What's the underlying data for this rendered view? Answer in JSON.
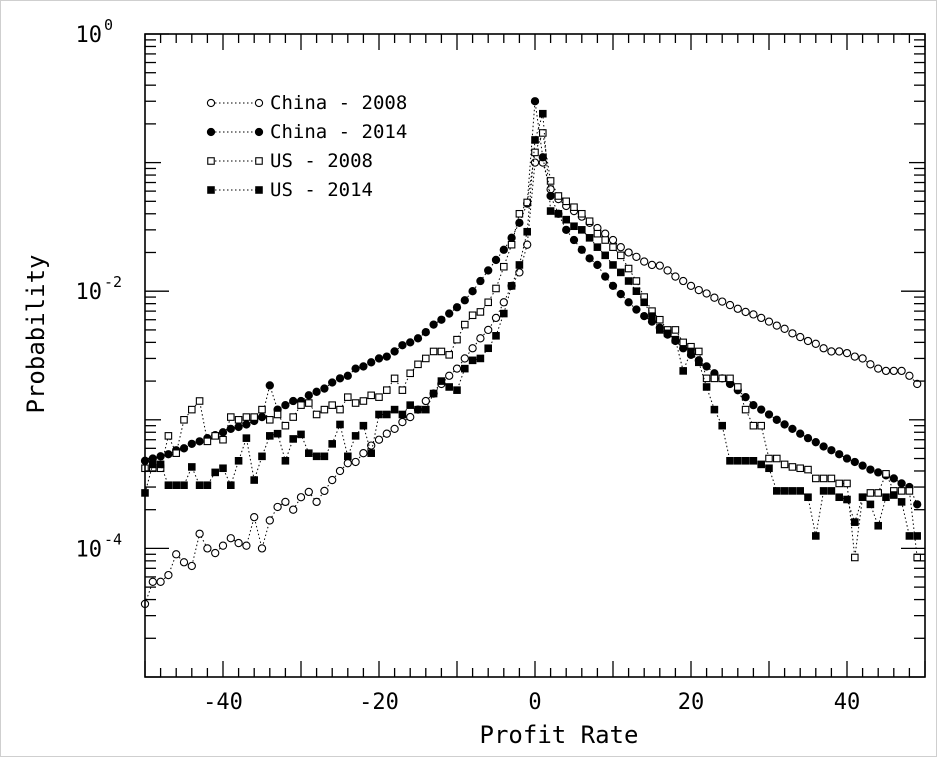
{
  "chart_data": {
    "type": "scatter",
    "xlabel": "Profit Rate",
    "ylabel": "Probability",
    "xlim": [
      -50,
      50
    ],
    "ylim": [
      1e-05,
      1
    ],
    "yscale": "log",
    "grid": false,
    "legend_position": "top-left",
    "x_ticks": [
      {
        "value": -40,
        "label": "-40"
      },
      {
        "value": -20,
        "label": "-20"
      },
      {
        "value": 0,
        "label": "0"
      },
      {
        "value": 20,
        "label": "20"
      },
      {
        "value": 40,
        "label": "40"
      }
    ],
    "y_ticks": [
      {
        "value": 1,
        "base": "10",
        "exp": "0"
      },
      {
        "value": 0.01,
        "base": "10",
        "exp": "-2"
      },
      {
        "value": 0.0001,
        "base": "10",
        "exp": "-4"
      }
    ],
    "series": [
      {
        "name": "China - 2008",
        "marker": "circle-open",
        "x": [
          -50,
          -49,
          -48,
          -47,
          -46,
          -45,
          -44,
          -43,
          -42,
          -41,
          -40,
          -39,
          -38,
          -37,
          -36,
          -35,
          -34,
          -33,
          -32,
          -31,
          -30,
          -29,
          -28,
          -27,
          -26,
          -25,
          -24,
          -23,
          -22,
          -21,
          -20,
          -19,
          -18,
          -17,
          -16,
          -15,
          -14,
          -13,
          -12,
          -11,
          -10,
          -9,
          -8,
          -7,
          -6,
          -5,
          -4,
          -3,
          -2,
          -1,
          0,
          1,
          2,
          3,
          4,
          5,
          6,
          7,
          8,
          9,
          10,
          11,
          12,
          13,
          14,
          15,
          16,
          17,
          18,
          19,
          20,
          21,
          22,
          23,
          24,
          25,
          26,
          27,
          28,
          29,
          30,
          31,
          32,
          33,
          34,
          35,
          36,
          37,
          38,
          39,
          40,
          41,
          42,
          43,
          44,
          45,
          46,
          47,
          48,
          49
        ],
        "y": [
          3.7e-05,
          5.5e-05,
          5.5e-05,
          6.2e-05,
          9e-05,
          7.8e-05,
          7.3e-05,
          0.00013,
          0.0001,
          9.2e-05,
          0.000105,
          0.00012,
          0.00011,
          0.000105,
          0.000175,
          0.0001,
          0.000165,
          0.00021,
          0.00023,
          0.0002,
          0.00025,
          0.000275,
          0.00023,
          0.00028,
          0.00034,
          0.0004,
          0.00046,
          0.00047,
          0.00055,
          0.00063,
          0.0007,
          0.00078,
          0.00085,
          0.00096,
          0.00105,
          0.0012,
          0.0014,
          0.0016,
          0.0019,
          0.0022,
          0.0025,
          0.003,
          0.0036,
          0.0043,
          0.005,
          0.0062,
          0.0082,
          0.011,
          0.014,
          0.023,
          0.1,
          0.1,
          0.062,
          0.052,
          0.046,
          0.042,
          0.038,
          0.034,
          0.031,
          0.028,
          0.025,
          0.022,
          0.02,
          0.0185,
          0.017,
          0.016,
          0.0158,
          0.0145,
          0.013,
          0.012,
          0.011,
          0.0102,
          0.0096,
          0.0089,
          0.0083,
          0.0078,
          0.0073,
          0.0069,
          0.0066,
          0.0062,
          0.0058,
          0.0054,
          0.0051,
          0.0047,
          0.0044,
          0.0041,
          0.0039,
          0.0036,
          0.0034,
          0.0034,
          0.0033,
          0.0031,
          0.003,
          0.0027,
          0.0025,
          0.0024,
          0.0024,
          0.0024,
          0.0022,
          0.0019
        ]
      },
      {
        "name": "China - 2014",
        "marker": "circle-filled",
        "x": [
          -50,
          -49,
          -48,
          -47,
          -46,
          -45,
          -44,
          -43,
          -42,
          -41,
          -40,
          -39,
          -38,
          -37,
          -36,
          -35,
          -34,
          -33,
          -32,
          -31,
          -30,
          -29,
          -28,
          -27,
          -26,
          -25,
          -24,
          -23,
          -22,
          -21,
          -20,
          -19,
          -18,
          -17,
          -16,
          -15,
          -14,
          -13,
          -12,
          -11,
          -10,
          -9,
          -8,
          -7,
          -6,
          -5,
          -4,
          -3,
          -2,
          -1,
          0,
          1,
          2,
          3,
          4,
          5,
          6,
          7,
          8,
          9,
          10,
          11,
          12,
          13,
          14,
          15,
          16,
          17,
          18,
          19,
          20,
          21,
          22,
          23,
          24,
          25,
          26,
          27,
          28,
          29,
          30,
          31,
          32,
          33,
          34,
          35,
          36,
          37,
          38,
          39,
          40,
          41,
          42,
          43,
          44,
          45,
          46,
          47,
          48,
          49
        ],
        "y": [
          0.00048,
          0.0005,
          0.00052,
          0.00054,
          0.00058,
          0.0006,
          0.00065,
          0.00068,
          0.00072,
          0.00076,
          0.0008,
          0.00085,
          0.00088,
          0.00092,
          0.00098,
          0.00105,
          0.00185,
          0.0012,
          0.0013,
          0.0014,
          0.0014,
          0.00155,
          0.00165,
          0.00175,
          0.00195,
          0.0021,
          0.0022,
          0.0025,
          0.0026,
          0.0028,
          0.003,
          0.0031,
          0.0034,
          0.0038,
          0.004,
          0.0043,
          0.0048,
          0.0055,
          0.006,
          0.0067,
          0.0075,
          0.0085,
          0.01,
          0.012,
          0.0145,
          0.0175,
          0.021,
          0.026,
          0.034,
          0.048,
          0.3,
          0.11,
          0.055,
          0.04,
          0.03,
          0.025,
          0.021,
          0.018,
          0.016,
          0.013,
          0.011,
          0.0095,
          0.0082,
          0.0072,
          0.0064,
          0.0058,
          0.0052,
          0.0046,
          0.0041,
          0.0036,
          0.0032,
          0.0029,
          0.0026,
          0.0023,
          0.0021,
          0.0019,
          0.0017,
          0.0015,
          0.0013,
          0.0012,
          0.0011,
          0.001,
          0.00092,
          0.00085,
          0.00078,
          0.00072,
          0.00067,
          0.00062,
          0.00058,
          0.00054,
          0.0005,
          0.00047,
          0.00044,
          0.00041,
          0.00039,
          0.00037,
          0.00035,
          0.00032,
          0.0003,
          0.00022
        ]
      },
      {
        "name": "US - 2008",
        "marker": "square-open",
        "x": [
          -50,
          -49,
          -48,
          -47,
          -46,
          -45,
          -44,
          -43,
          -42,
          -41,
          -40,
          -39,
          -38,
          -37,
          -36,
          -35,
          -34,
          -33,
          -32,
          -31,
          -30,
          -29,
          -28,
          -27,
          -26,
          -25,
          -24,
          -23,
          -22,
          -21,
          -20,
          -19,
          -18,
          -17,
          -16,
          -15,
          -14,
          -13,
          -12,
          -11,
          -10,
          -9,
          -8,
          -7,
          -6,
          -5,
          -4,
          -3,
          -2,
          -1,
          0,
          1,
          2,
          3,
          4,
          5,
          6,
          7,
          8,
          9,
          10,
          11,
          12,
          13,
          14,
          15,
          16,
          17,
          18,
          19,
          20,
          21,
          22,
          23,
          24,
          25,
          26,
          27,
          28,
          29,
          30,
          31,
          32,
          33,
          34,
          35,
          36,
          37,
          38,
          39,
          40,
          41,
          42,
          43,
          44,
          45,
          46,
          47,
          48,
          49
        ],
        "y": [
          0.00042,
          0.00042,
          0.00042,
          0.00075,
          0.00055,
          0.001,
          0.0012,
          0.0014,
          0.00068,
          0.00075,
          0.0007,
          0.00105,
          0.001,
          0.00105,
          0.00105,
          0.0012,
          0.001,
          0.0011,
          0.0009,
          0.00105,
          0.0013,
          0.00135,
          0.0011,
          0.0012,
          0.0013,
          0.0012,
          0.0015,
          0.00135,
          0.0014,
          0.00155,
          0.0015,
          0.0017,
          0.0021,
          0.0017,
          0.0023,
          0.0027,
          0.003,
          0.0034,
          0.0034,
          0.0032,
          0.0042,
          0.0055,
          0.0065,
          0.0069,
          0.0082,
          0.0105,
          0.0155,
          0.023,
          0.04,
          0.049,
          0.12,
          0.17,
          0.072,
          0.055,
          0.05,
          0.045,
          0.04,
          0.035,
          0.028,
          0.025,
          0.022,
          0.019,
          0.015,
          0.012,
          0.009,
          0.007,
          0.006,
          0.005,
          0.005,
          0.004,
          0.0037,
          0.0034,
          0.0021,
          0.0021,
          0.0021,
          0.0021,
          0.0018,
          0.0012,
          0.0009,
          0.0009,
          0.0005,
          0.0005,
          0.00045,
          0.00043,
          0.00042,
          0.00041,
          0.00035,
          0.00035,
          0.00035,
          0.00032,
          0.00032,
          8.5e-05,
          0.00025,
          0.00027,
          0.00027,
          0.00038,
          0.00028,
          0.00028,
          0.00028,
          8.5e-05
        ]
      },
      {
        "name": "US - 2014",
        "marker": "square-filled",
        "x": [
          -50,
          -49,
          -48,
          -47,
          -46,
          -45,
          -44,
          -43,
          -42,
          -41,
          -40,
          -39,
          -38,
          -37,
          -36,
          -35,
          -34,
          -33,
          -32,
          -31,
          -30,
          -29,
          -28,
          -27,
          -26,
          -25,
          -24,
          -23,
          -22,
          -21,
          -20,
          -19,
          -18,
          -17,
          -16,
          -15,
          -14,
          -13,
          -12,
          -11,
          -10,
          -9,
          -8,
          -7,
          -6,
          -5,
          -4,
          -3,
          -2,
          -1,
          0,
          1,
          2,
          3,
          4,
          5,
          6,
          7,
          8,
          9,
          10,
          11,
          12,
          13,
          14,
          15,
          16,
          17,
          18,
          19,
          20,
          21,
          22,
          23,
          24,
          25,
          26,
          27,
          28,
          29,
          30,
          31,
          32,
          33,
          34,
          35,
          36,
          37,
          38,
          39,
          40,
          41,
          42,
          43,
          44,
          45,
          46,
          47,
          48,
          49
        ],
        "y": [
          0.00027,
          0.00045,
          0.00045,
          0.00031,
          0.00031,
          0.00031,
          0.00043,
          0.00031,
          0.00031,
          0.00039,
          0.00042,
          0.00031,
          0.00048,
          0.00072,
          0.00034,
          0.00052,
          0.00075,
          0.00078,
          0.00048,
          0.00071,
          0.00077,
          0.00055,
          0.00052,
          0.00052,
          0.00065,
          0.00092,
          0.00052,
          0.00075,
          0.0009,
          0.00055,
          0.0011,
          0.0011,
          0.0012,
          0.0011,
          0.0013,
          0.0012,
          0.0012,
          0.0016,
          0.002,
          0.0018,
          0.0017,
          0.0025,
          0.0029,
          0.003,
          0.0036,
          0.0045,
          0.0067,
          0.011,
          0.016,
          0.029,
          0.15,
          0.24,
          0.042,
          0.04,
          0.036,
          0.032,
          0.03,
          0.026,
          0.022,
          0.019,
          0.016,
          0.014,
          0.012,
          0.01,
          0.0082,
          0.0064,
          0.005,
          0.0047,
          0.0042,
          0.0024,
          0.0034,
          0.0028,
          0.0018,
          0.0012,
          0.0009,
          0.00048,
          0.00048,
          0.00048,
          0.00048,
          0.00045,
          0.00042,
          0.00028,
          0.00028,
          0.00028,
          0.00028,
          0.00025,
          0.000125,
          0.00028,
          0.00028,
          0.00025,
          0.00024,
          0.00016,
          0.00025,
          0.00022,
          0.00015,
          0.00025,
          0.00026,
          0.00023,
          0.000125,
          0.000125
        ]
      }
    ]
  }
}
